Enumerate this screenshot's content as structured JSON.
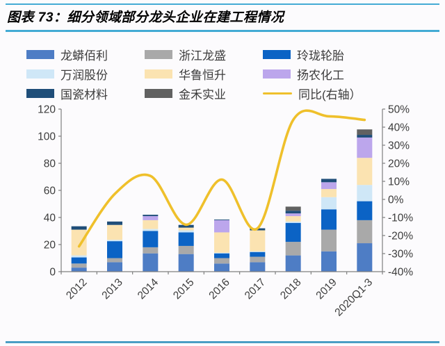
{
  "figure": {
    "title": "图表 73：细分领域部分龙头企业在建工程情况"
  },
  "colors": {
    "header_rule": "#43abd4",
    "bottom_rule": "#4a9ec4",
    "axis_line": "#7f7f7f",
    "axis_text": "#3c3c3c",
    "background": "#fcfbfd"
  },
  "legend": {
    "items": [
      {
        "label": "龙蟒佰利",
        "color": "#4e7dc5",
        "type": "bar"
      },
      {
        "label": "浙江龙盛",
        "color": "#a9a9a9",
        "type": "bar"
      },
      {
        "label": "玲珑轮胎",
        "color": "#0b63c5",
        "type": "bar"
      },
      {
        "label": "万润股份",
        "color": "#cfe7f7",
        "type": "bar"
      },
      {
        "label": "华鲁恒升",
        "color": "#fbe3b1",
        "type": "bar"
      },
      {
        "label": "扬农化工",
        "color": "#bca6ec",
        "type": "bar"
      },
      {
        "label": "国瓷材料",
        "color": "#1f4e79",
        "type": "bar"
      },
      {
        "label": "金禾实业",
        "color": "#616161",
        "type": "bar"
      },
      {
        "label": "同比(右轴）",
        "color": "#efc02b",
        "type": "line"
      }
    ]
  },
  "chart_data": {
    "type": "combo-stacked-bar-line",
    "categories": [
      "2012",
      "2013",
      "2014",
      "2015",
      "2016",
      "2017",
      "2018",
      "2019",
      "2020Q1-3"
    ],
    "series": [
      {
        "name": "龙蟒佰利",
        "color": "#4e7dc5",
        "values": [
          3,
          7,
          13.5,
          13,
          6,
          7,
          12,
          15,
          21
        ]
      },
      {
        "name": "浙江龙盛",
        "color": "#a9a9a9",
        "values": [
          3,
          3,
          4.5,
          6,
          4,
          4,
          10,
          16,
          17
        ]
      },
      {
        "name": "玲珑轮胎",
        "color": "#0b63c5",
        "values": [
          4.5,
          12.5,
          12,
          10,
          3.5,
          3.5,
          14,
          15,
          14
        ]
      },
      {
        "name": "万润股份",
        "color": "#cfe7f7",
        "values": [
          1.5,
          1,
          1.5,
          1.5,
          0.5,
          0.5,
          1,
          9,
          12
        ]
      },
      {
        "name": "华鲁恒升",
        "color": "#fbe3b1",
        "values": [
          19,
          11,
          6.5,
          2,
          15,
          15.5,
          4,
          6,
          20
        ]
      },
      {
        "name": "扬农化工",
        "color": "#bca6ec",
        "values": [
          0,
          0,
          3,
          0,
          9,
          0,
          2,
          5,
          15
        ]
      },
      {
        "name": "国瓷材料",
        "color": "#1f4e79",
        "values": [
          2.5,
          2.5,
          1,
          2,
          0.5,
          1.5,
          2,
          2.5,
          2
        ]
      },
      {
        "name": "金禾实业",
        "color": "#616161",
        "values": [
          0,
          0,
          0,
          0,
          0,
          0,
          3,
          0,
          4
        ]
      }
    ],
    "line_series": {
      "name": "同比(右轴）",
      "color": "#efc02b",
      "axis": "right",
      "values_pct": [
        -26,
        3,
        13,
        -14,
        11,
        -16,
        44,
        46,
        44
      ]
    },
    "left_axis": {
      "min": 0,
      "max": 120,
      "step": 20,
      "tick_labels": [
        "0",
        "20",
        "40",
        "60",
        "80",
        "100",
        "120"
      ]
    },
    "right_axis": {
      "min": -40,
      "max": 50,
      "step": 10,
      "tick_labels": [
        "-40%",
        "-30%",
        "-20%",
        "-10%",
        "0%",
        "10%",
        "20%",
        "30%",
        "40%",
        "50%"
      ]
    },
    "grid": false,
    "legend_position": "top"
  }
}
